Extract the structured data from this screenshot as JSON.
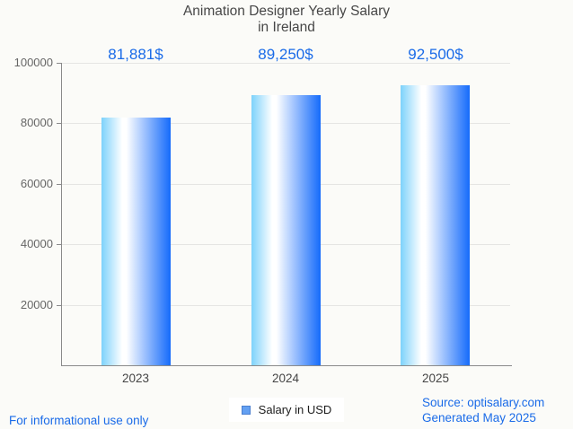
{
  "title": {
    "line1": "Animation Designer Yearly Salary",
    "line2": "in Ireland"
  },
  "chart_data": {
    "type": "bar",
    "title": "Animation Designer Yearly Salary in Ireland",
    "categories": [
      "2023",
      "2024",
      "2025"
    ],
    "values": [
      81881,
      89250,
      92500
    ],
    "value_labels": [
      "81,881$",
      "89,250$",
      "92,500$"
    ],
    "series_name": "Salary in USD",
    "xlabel": "",
    "ylabel": "",
    "ylim": [
      0,
      100000
    ],
    "yticks": [
      100000,
      80000,
      60000,
      40000,
      20000
    ],
    "grid": true,
    "legend_position": "bottom"
  },
  "legend": {
    "label": "Salary in USD"
  },
  "footer": {
    "disclaimer": "For informational use only",
    "source": "Source: optisalary.com",
    "generated": "Generated May 2025"
  },
  "colors": {
    "background": "#fbfbf8",
    "accent_blue": "#1a6be8",
    "bar_gradient_left": "#7dd2fb",
    "bar_gradient_mid": "#ffffff",
    "bar_gradient_right": "#156bfb",
    "legend_swatch_fill": "#63a0f2",
    "legend_swatch_border": "#4a7fd0",
    "gridline": "#e5e5e3",
    "axis": "#8a8a8a",
    "title_text": "#474747",
    "ytick_text": "#666666",
    "xtick_text": "#454545",
    "legend_text": "#1c1c1c"
  }
}
